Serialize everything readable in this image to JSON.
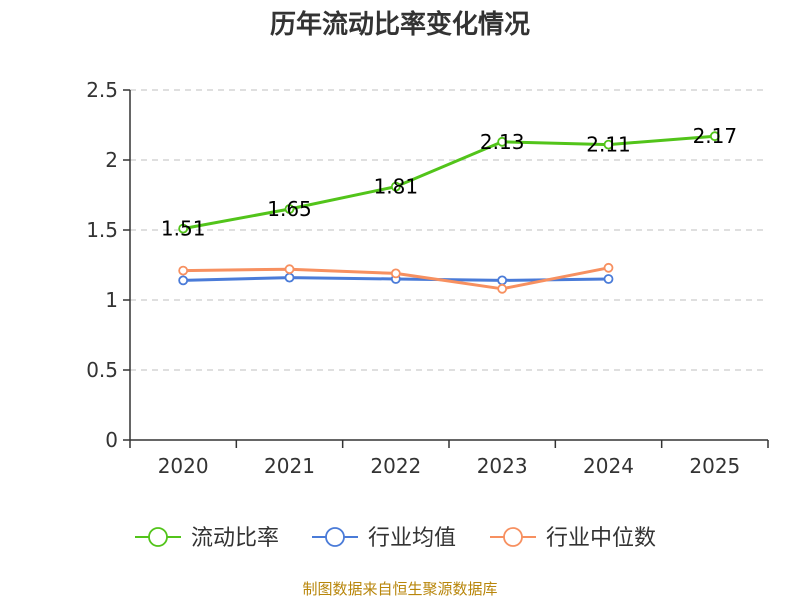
{
  "chart_data": {
    "type": "line",
    "title": "历年流动比率变化情况",
    "categories": [
      "2020",
      "2021",
      "2022",
      "2023",
      "2024",
      "2025"
    ],
    "ylim": [
      0,
      2.5
    ],
    "yticks": [
      "0",
      "0.5",
      "1",
      "1.5",
      "2",
      "2.5"
    ],
    "ytick_values": [
      0,
      0.5,
      1,
      1.5,
      2,
      2.5
    ],
    "grid": true,
    "legend_position": "bottom",
    "series": [
      {
        "name": "流动比率",
        "color": "#52c41a",
        "values": [
          1.51,
          1.65,
          1.81,
          2.13,
          2.11,
          2.17
        ],
        "labels": [
          "1.51",
          "1.65",
          "1.81",
          "2.13",
          "2.11",
          "2.17"
        ],
        "show_labels": true
      },
      {
        "name": "行业均值",
        "color": "#4a7bd8",
        "values": [
          1.14,
          1.16,
          1.15,
          1.14,
          1.15,
          null
        ],
        "show_labels": false
      },
      {
        "name": "行业中位数",
        "color": "#f79060",
        "values": [
          1.21,
          1.22,
          1.19,
          1.08,
          1.23,
          null
        ],
        "show_labels": false
      }
    ],
    "source": "制图数据来自恒生聚源数据库"
  }
}
